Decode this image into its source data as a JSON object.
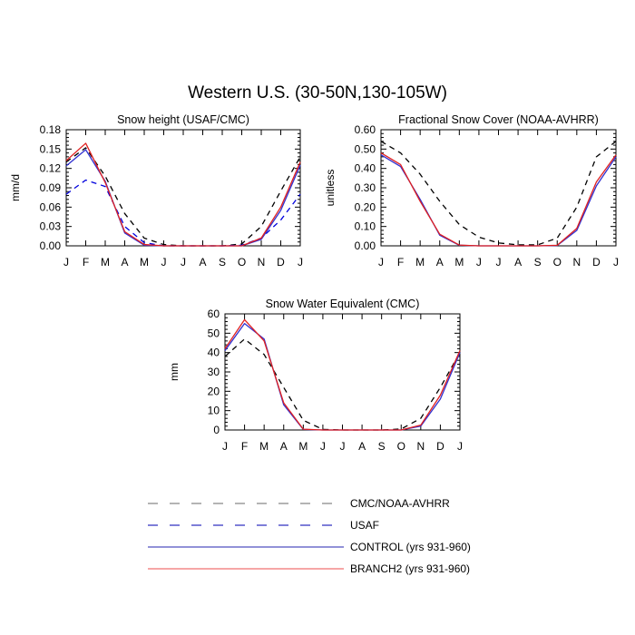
{
  "figure": {
    "title": "Western U.S. (30-50N,130-105W)"
  },
  "colors": {
    "obs": "#000000",
    "usaf": "#0000dd",
    "control": "#3030d0",
    "branch2": "#e02020",
    "legend_obs": "#888888",
    "legend_usaf": "#3030c0",
    "legend_control": "#5050c0",
    "legend_branch2": "#f07070"
  },
  "legend": {
    "items": [
      {
        "label": "CMC/NOAA-AVHRR",
        "style": "dashed",
        "color_key": "legend_obs"
      },
      {
        "label": "USAF",
        "style": "dashed",
        "color_key": "legend_usaf"
      },
      {
        "label": "CONTROL (yrs 931-960)",
        "style": "solid",
        "color_key": "legend_control"
      },
      {
        "label": "BRANCH2 (yrs 931-960)",
        "style": "solid",
        "color_key": "legend_branch2"
      }
    ]
  },
  "chart_data": [
    {
      "type": "line",
      "title": "Snow height (USAF/CMC)",
      "ylabel": "mm/d",
      "xlabel": "",
      "categories": [
        "J",
        "F",
        "M",
        "A",
        "M",
        "J",
        "J",
        "A",
        "S",
        "O",
        "N",
        "D",
        "J"
      ],
      "ylim": [
        0,
        0.18
      ],
      "yticks": [
        0.0,
        0.03,
        0.06,
        0.09,
        0.12,
        0.15,
        0.18
      ],
      "ytick_labels": [
        "0.00",
        "0.03",
        "0.06",
        "0.09",
        "0.12",
        "0.15",
        "0.18"
      ],
      "series": [
        {
          "name": "CMC/NOAA-AVHRR",
          "style": "dashed",
          "color_key": "obs",
          "values": [
            0.13,
            0.152,
            0.108,
            0.05,
            0.012,
            0.002,
            0,
            0,
            0,
            0.003,
            0.03,
            0.085,
            0.138
          ]
        },
        {
          "name": "USAF",
          "style": "dashed",
          "color_key": "usaf",
          "values": [
            0.08,
            0.102,
            0.092,
            0.03,
            0.005,
            0,
            0,
            0,
            0,
            0.001,
            0.012,
            0.04,
            0.08
          ]
        },
        {
          "name": "CONTROL (yrs 931-960)",
          "style": "solid",
          "color_key": "control",
          "values": [
            0.124,
            0.149,
            0.1,
            0.02,
            0.001,
            0,
            0,
            0,
            0,
            0,
            0.01,
            0.055,
            0.125
          ]
        },
        {
          "name": "BRANCH2 (yrs 931-960)",
          "style": "solid",
          "color_key": "branch2",
          "values": [
            0.132,
            0.159,
            0.098,
            0.022,
            0.002,
            0,
            0,
            0,
            0,
            0,
            0.012,
            0.06,
            0.13
          ]
        }
      ]
    },
    {
      "type": "line",
      "title": "Fractional Snow Cover (NOAA-AVHRR)",
      "ylabel": "unitless",
      "xlabel": "",
      "categories": [
        "J",
        "F",
        "M",
        "A",
        "M",
        "J",
        "J",
        "A",
        "S",
        "O",
        "N",
        "D",
        "J"
      ],
      "ylim": [
        0,
        0.6
      ],
      "yticks": [
        0.0,
        0.1,
        0.2,
        0.3,
        0.4,
        0.5,
        0.6
      ],
      "ytick_labels": [
        "0.00",
        "0.10",
        "0.20",
        "0.30",
        "0.40",
        "0.50",
        "0.60"
      ],
      "series": [
        {
          "name": "CMC/NOAA-AVHRR",
          "style": "dashed",
          "color_key": "obs",
          "values": [
            0.54,
            0.48,
            0.37,
            0.23,
            0.11,
            0.045,
            0.015,
            0.005,
            0.005,
            0.04,
            0.2,
            0.46,
            0.54
          ]
        },
        {
          "name": "CONTROL (yrs 931-960)",
          "style": "solid",
          "color_key": "control",
          "values": [
            0.47,
            0.41,
            0.24,
            0.055,
            0.003,
            0,
            0,
            0,
            0,
            0.002,
            0.08,
            0.31,
            0.46
          ]
        },
        {
          "name": "BRANCH2 (yrs 931-960)",
          "style": "solid",
          "color_key": "branch2",
          "values": [
            0.48,
            0.42,
            0.23,
            0.06,
            0.004,
            0,
            0,
            0,
            0,
            0.003,
            0.09,
            0.33,
            0.47
          ]
        }
      ]
    },
    {
      "type": "line",
      "title": "Snow Water Equivalent (CMC)",
      "ylabel": "mm",
      "xlabel": "",
      "categories": [
        "J",
        "F",
        "M",
        "A",
        "M",
        "J",
        "J",
        "A",
        "S",
        "O",
        "N",
        "D",
        "J"
      ],
      "ylim": [
        0,
        60
      ],
      "yticks": [
        0,
        10,
        20,
        30,
        40,
        50,
        60
      ],
      "ytick_labels": [
        "0",
        "10",
        "20",
        "30",
        "40",
        "50",
        "60"
      ],
      "series": [
        {
          "name": "CMC/NOAA-AVHRR",
          "style": "dashed",
          "color_key": "obs",
          "values": [
            38,
            47,
            39,
            22,
            5,
            0.3,
            0,
            0,
            0,
            0.5,
            6,
            22,
            40
          ]
        },
        {
          "name": "CONTROL (yrs 931-960)",
          "style": "solid",
          "color_key": "control",
          "values": [
            41,
            55,
            47,
            13,
            0.3,
            0,
            0,
            0,
            0,
            0,
            2,
            16,
            40
          ]
        },
        {
          "name": "BRANCH2 (yrs 931-960)",
          "style": "solid",
          "color_key": "branch2",
          "values": [
            42,
            57,
            46,
            14,
            0.4,
            0,
            0,
            0,
            0,
            0,
            2.5,
            18,
            41
          ]
        }
      ]
    }
  ]
}
